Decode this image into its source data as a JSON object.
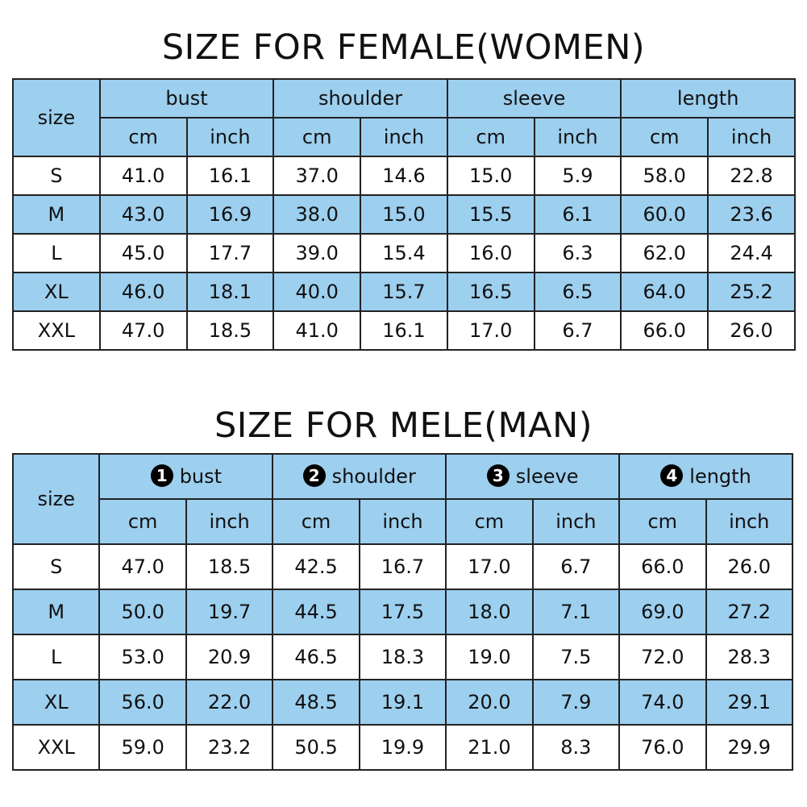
{
  "colors": {
    "header": "#9dcfef",
    "border": "#222222"
  },
  "female": {
    "title": "SIZE FOR FEMALE(WOMEN)",
    "size_label": "size",
    "groups": [
      {
        "label": "bust"
      },
      {
        "label": "shoulder"
      },
      {
        "label": "sleeve"
      },
      {
        "label": "length"
      }
    ],
    "units": [
      "cm",
      "inch"
    ],
    "rows": [
      [
        "S",
        "41.0",
        "16.1",
        "37.0",
        "14.6",
        "15.0",
        "5.9",
        "58.0",
        "22.8"
      ],
      [
        "M",
        "43.0",
        "16.9",
        "38.0",
        "15.0",
        "15.5",
        "6.1",
        "60.0",
        "23.6"
      ],
      [
        "L",
        "45.0",
        "17.7",
        "39.0",
        "15.4",
        "16.0",
        "6.3",
        "62.0",
        "24.4"
      ],
      [
        "XL",
        "46.0",
        "18.1",
        "40.0",
        "15.7",
        "16.5",
        "6.5",
        "64.0",
        "25.2"
      ],
      [
        "XXL",
        "47.0",
        "18.5",
        "41.0",
        "16.1",
        "17.0",
        "6.7",
        "66.0",
        "26.0"
      ]
    ]
  },
  "male": {
    "title": "SIZE FOR MELE(MAN)",
    "size_label": "size",
    "groups": [
      {
        "num": "1",
        "label": "bust"
      },
      {
        "num": "2",
        "label": "shoulder"
      },
      {
        "num": "3",
        "label": "sleeve"
      },
      {
        "num": "4",
        "label": "length"
      }
    ],
    "units": [
      "cm",
      "inch"
    ],
    "rows": [
      [
        "S",
        "47.0",
        "18.5",
        "42.5",
        "16.7",
        "17.0",
        "6.7",
        "66.0",
        "26.0"
      ],
      [
        "M",
        "50.0",
        "19.7",
        "44.5",
        "17.5",
        "18.0",
        "7.1",
        "69.0",
        "27.2"
      ],
      [
        "L",
        "53.0",
        "20.9",
        "46.5",
        "18.3",
        "19.0",
        "7.5",
        "72.0",
        "28.3"
      ],
      [
        "XL",
        "56.0",
        "22.0",
        "48.5",
        "19.1",
        "20.0",
        "7.9",
        "74.0",
        "29.1"
      ],
      [
        "XXL",
        "59.0",
        "23.2",
        "50.5",
        "19.9",
        "21.0",
        "8.3",
        "76.0",
        "29.9"
      ]
    ]
  }
}
